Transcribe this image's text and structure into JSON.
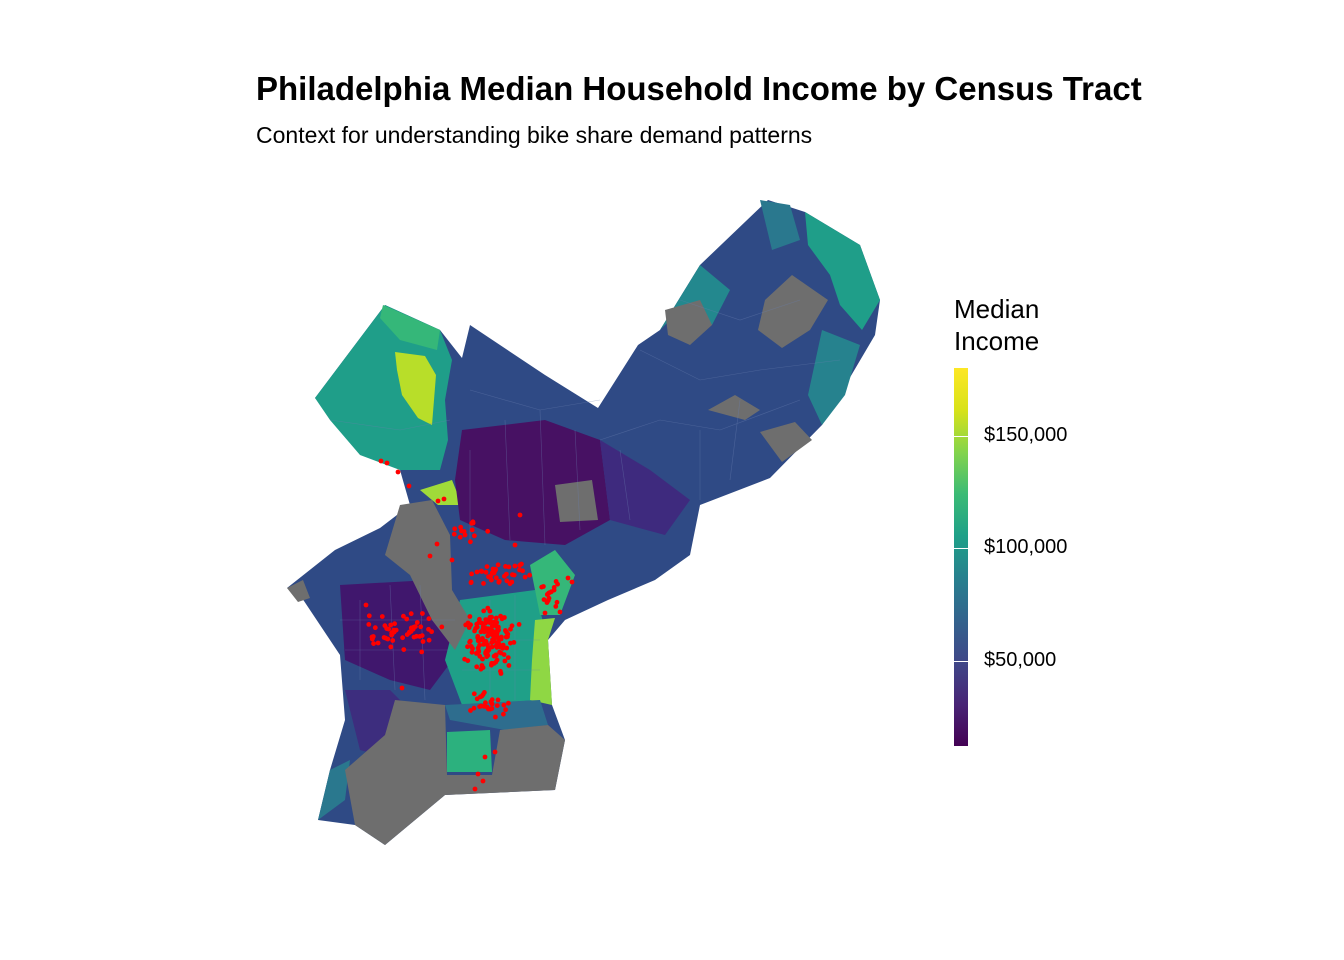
{
  "title": "Philadelphia Median Household Income by Census Tract",
  "subtitle": "Context for understanding bike share demand patterns",
  "legend": {
    "title_line1": "Median",
    "title_line2": "Income",
    "min_value": 12000,
    "max_value": 180000,
    "ticks": [
      {
        "value": 150000,
        "label": "$150,000"
      },
      {
        "value": 100000,
        "label": "$100,000"
      },
      {
        "value": 50000,
        "label": "$50,000"
      }
    ]
  },
  "colors": {
    "no_data": "#6e6e6e",
    "station_points": "#ff0000",
    "scale": [
      "#440154",
      "#482576",
      "#3f4788",
      "#33638d",
      "#27808e",
      "#1fa088",
      "#3bbb75",
      "#84d44b",
      "#d8e219",
      "#fde725"
    ]
  }
}
